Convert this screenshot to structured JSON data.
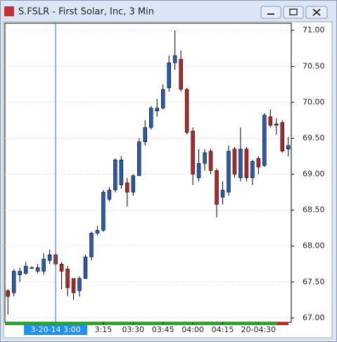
{
  "window": {
    "title": "S.FSLR - First Solar, Inc, 3 Min"
  },
  "chart_data": {
    "type": "candlestick",
    "up_color": "#2a5aa8",
    "down_color": "#a82a2a",
    "open": [
      67.38,
      67.35,
      67.6,
      67.62,
      67.7,
      67.65,
      67.65,
      67.8,
      67.88,
      67.75,
      67.68,
      67.55,
      67.38,
      67.55,
      67.85,
      68.18,
      68.22,
      68.65,
      68.78,
      68.85,
      68.88,
      68.75,
      68.98,
      69.45,
      69.65,
      69.88,
      69.92,
      70.2,
      70.55,
      70.6,
      70.18,
      69.6,
      68.95,
      69.15,
      69.32,
      69.05,
      68.68,
      68.75,
      69.35,
      68.95,
      69.35,
      68.95,
      69.22,
      69.12,
      69.8,
      69.7,
      69.72,
      69.35
    ],
    "high": [
      67.4,
      67.68,
      67.7,
      67.78,
      67.72,
      67.75,
      67.9,
      67.95,
      67.92,
      67.78,
      67.72,
      67.55,
      67.58,
      67.88,
      68.2,
      68.28,
      68.78,
      68.82,
      69.22,
      69.25,
      68.95,
      69.0,
      69.5,
      69.75,
      69.95,
      70.05,
      70.25,
      70.65,
      71.0,
      70.72,
      70.2,
      69.65,
      69.35,
      69.35,
      69.35,
      69.08,
      68.9,
      69.4,
      69.38,
      69.65,
      69.38,
      69.2,
      69.25,
      69.85,
      69.9,
      69.78,
      69.75,
      69.52
    ],
    "low": [
      67.05,
      67.3,
      67.5,
      67.6,
      67.68,
      67.62,
      67.6,
      67.75,
      67.7,
      67.4,
      67.3,
      67.25,
      67.3,
      67.55,
      67.8,
      68.15,
      68.2,
      68.62,
      68.75,
      68.8,
      68.55,
      68.7,
      68.98,
      69.4,
      69.62,
      69.8,
      69.9,
      70.15,
      70.45,
      70.15,
      69.55,
      68.85,
      68.9,
      69.05,
      69.0,
      68.4,
      68.58,
      68.7,
      68.95,
      68.9,
      68.9,
      68.85,
      69.0,
      69.1,
      69.65,
      69.55,
      69.3,
      69.25
    ],
    "close": [
      67.3,
      67.65,
      67.65,
      67.72,
      67.7,
      67.7,
      67.82,
      67.88,
      67.75,
      67.65,
      67.42,
      67.35,
      67.55,
      67.85,
      68.18,
      68.22,
      68.75,
      68.78,
      69.2,
      69.2,
      68.75,
      68.98,
      69.45,
      69.65,
      69.92,
      69.92,
      70.18,
      70.55,
      70.65,
      70.18,
      69.58,
      69.0,
      69.15,
      69.3,
      69.05,
      68.58,
      68.78,
      69.32,
      69.0,
      69.35,
      68.95,
      69.18,
      69.1,
      69.82,
      69.68,
      69.68,
      69.32,
      69.4
    ],
    "ylim": [
      66.94,
      71.1
    ],
    "yticks": [
      {
        "value": 67,
        "label": "67.00"
      },
      {
        "value": 67.5,
        "label": "67.50"
      },
      {
        "value": 68,
        "label": "68.00"
      },
      {
        "value": 68.5,
        "label": "68.50"
      },
      {
        "value": 69,
        "label": "69.00"
      },
      {
        "value": 69.5,
        "label": "69.50"
      },
      {
        "value": 70,
        "label": "70.00"
      },
      {
        "value": 70.5,
        "label": "70.50"
      },
      {
        "value": 71,
        "label": "71.00"
      }
    ],
    "xticks": [
      {
        "value": 16,
        "label": "3:15"
      },
      {
        "value": 21,
        "label": "03:30"
      },
      {
        "value": 26,
        "label": "03:45"
      },
      {
        "value": 31,
        "label": "04:00"
      },
      {
        "value": 36,
        "label": "04:15"
      },
      {
        "value": 42,
        "label": "20-04:30"
      }
    ],
    "cursor": {
      "index": 8,
      "label": "3-20-14   3:00"
    }
  }
}
